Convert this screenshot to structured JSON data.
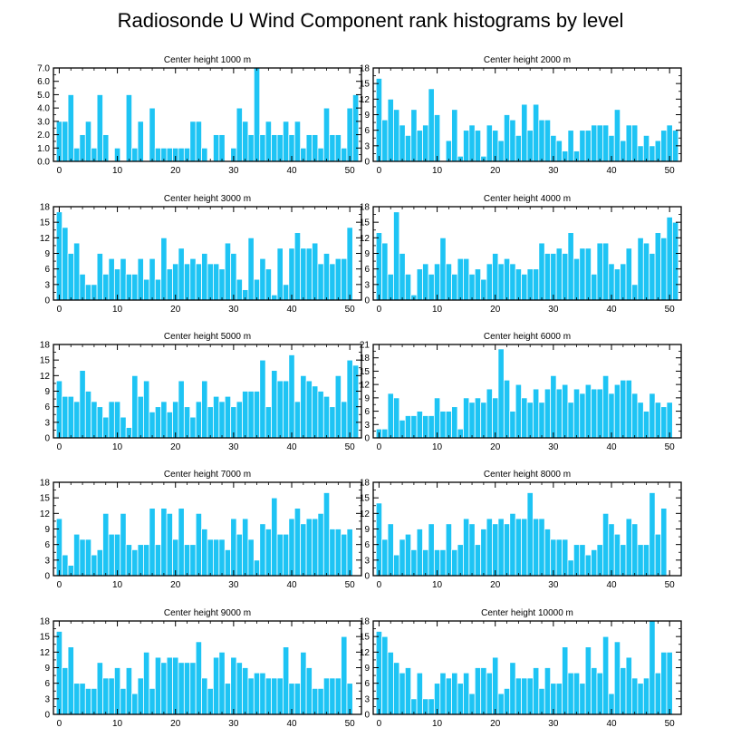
{
  "title": "Radiosonde U Wind Component rank histograms by level",
  "colors": {
    "bar": "#1ec4f4",
    "bar_edge": "#ffffff",
    "axis": "#000000"
  },
  "chart_data": [
    {
      "type": "bar",
      "title": "Center height 1000 m",
      "x_start": 0,
      "xlim": [
        -1,
        52
      ],
      "xticks": [
        0,
        10,
        20,
        30,
        40,
        50
      ],
      "ylim": [
        0,
        7
      ],
      "yticks": [
        0,
        1,
        2,
        3,
        4,
        5,
        6,
        7
      ],
      "ytick_format": "fixed1",
      "values": [
        3,
        3,
        5,
        1,
        2,
        3,
        1,
        5,
        2,
        0,
        1,
        0,
        5,
        1,
        3,
        0,
        4,
        1,
        1,
        1,
        1,
        1,
        1,
        3,
        3,
        1,
        0,
        2,
        2,
        0,
        1,
        4,
        3,
        2,
        7,
        2,
        3,
        2,
        2,
        3,
        2,
        3,
        1,
        2,
        2,
        1,
        4,
        2,
        2,
        1,
        4,
        5
      ]
    },
    {
      "type": "bar",
      "title": "Center height 2000 m",
      "x_start": 0,
      "xlim": [
        -1,
        52
      ],
      "xticks": [
        0,
        10,
        20,
        30,
        40,
        50
      ],
      "ylim": [
        0,
        18
      ],
      "yticks": [
        0,
        3,
        6,
        9,
        12,
        15,
        18
      ],
      "ytick_format": "int",
      "values": [
        16,
        8,
        12,
        10,
        7,
        5,
        10,
        6,
        7,
        14,
        9,
        0,
        4,
        10,
        1,
        6,
        7,
        6,
        1,
        7,
        6,
        4,
        9,
        8,
        5,
        11,
        6,
        11,
        8,
        8,
        5,
        4,
        2,
        6,
        2,
        6,
        6,
        7,
        7,
        7,
        5,
        10,
        4,
        7,
        7,
        3,
        5,
        3,
        4,
        6,
        7,
        6
      ]
    },
    {
      "type": "bar",
      "title": "Center height 3000 m",
      "x_start": 0,
      "xlim": [
        -1,
        52
      ],
      "xticks": [
        0,
        10,
        20,
        30,
        40,
        50
      ],
      "ylim": [
        0,
        18
      ],
      "yticks": [
        0,
        3,
        6,
        9,
        12,
        15,
        18
      ],
      "ytick_format": "int",
      "values": [
        17,
        14,
        9,
        11,
        5,
        3,
        3,
        9,
        5,
        8,
        6,
        8,
        5,
        5,
        8,
        4,
        8,
        4,
        12,
        6,
        7,
        10,
        7,
        8,
        7,
        9,
        7,
        7,
        6,
        11,
        9,
        4,
        2,
        12,
        4,
        8,
        6,
        1,
        10,
        3,
        10,
        13,
        10,
        10,
        11,
        7,
        9,
        7,
        8,
        8,
        14,
        0
      ]
    },
    {
      "type": "bar",
      "title": "Center height 4000 m",
      "x_start": 0,
      "xlim": [
        -1,
        52
      ],
      "xticks": [
        0,
        10,
        20,
        30,
        40,
        50
      ],
      "ylim": [
        0,
        18
      ],
      "yticks": [
        0,
        3,
        6,
        9,
        12,
        15,
        18
      ],
      "ytick_format": "int",
      "values": [
        13,
        11,
        5,
        17,
        9,
        5,
        1,
        6,
        7,
        5,
        7,
        12,
        7,
        5,
        8,
        8,
        5,
        6,
        4,
        7,
        9,
        7,
        8,
        7,
        6,
        5,
        6,
        6,
        11,
        9,
        9,
        10,
        9,
        13,
        8,
        10,
        10,
        5,
        11,
        11,
        7,
        6,
        7,
        10,
        3,
        12,
        11,
        9,
        13,
        12,
        16,
        15
      ]
    },
    {
      "type": "bar",
      "title": "Center height 5000 m",
      "x_start": 0,
      "xlim": [
        -1,
        52
      ],
      "xticks": [
        0,
        10,
        20,
        30,
        40,
        50
      ],
      "ylim": [
        0,
        18
      ],
      "yticks": [
        0,
        3,
        6,
        9,
        12,
        15,
        18
      ],
      "ytick_format": "int",
      "values": [
        11,
        8,
        8,
        7,
        13,
        9,
        7,
        6,
        4,
        7,
        7,
        4,
        2,
        12,
        8,
        11,
        5,
        6,
        7,
        5,
        7,
        11,
        6,
        4,
        7,
        11,
        6,
        8,
        7,
        8,
        6,
        7,
        9,
        9,
        9,
        15,
        6,
        13,
        11,
        11,
        16,
        7,
        12,
        11,
        10,
        9,
        8,
        6,
        12,
        7,
        15,
        14
      ]
    },
    {
      "type": "bar",
      "title": "Center height 6000 m",
      "x_start": 0,
      "xlim": [
        -1,
        52
      ],
      "xticks": [
        0,
        10,
        20,
        30,
        40,
        50
      ],
      "ylim": [
        0,
        21
      ],
      "yticks": [
        0,
        3,
        6,
        9,
        12,
        15,
        18,
        21
      ],
      "ytick_format": "int",
      "values": [
        2,
        2,
        10,
        9,
        4,
        5,
        5,
        6,
        5,
        5,
        9,
        6,
        6,
        7,
        2,
        9,
        8,
        9,
        8,
        11,
        9,
        20,
        13,
        6,
        12,
        9,
        8,
        11,
        8,
        11,
        14,
        11,
        12,
        8,
        11,
        10,
        12,
        11,
        11,
        14,
        10,
        12,
        13,
        13,
        10,
        8,
        6,
        10,
        8,
        7,
        8,
        0
      ]
    },
    {
      "type": "bar",
      "title": "Center height 7000 m",
      "x_start": 0,
      "xlim": [
        -1,
        52
      ],
      "xticks": [
        0,
        10,
        20,
        30,
        40,
        50
      ],
      "ylim": [
        0,
        18
      ],
      "yticks": [
        0,
        3,
        6,
        9,
        12,
        15,
        18
      ],
      "ytick_format": "int",
      "values": [
        11,
        4,
        2,
        8,
        7,
        7,
        4,
        5,
        12,
        8,
        8,
        12,
        6,
        5,
        6,
        6,
        13,
        6,
        13,
        12,
        7,
        13,
        6,
        6,
        12,
        9,
        7,
        7,
        7,
        5,
        11,
        8,
        11,
        7,
        3,
        10,
        9,
        15,
        8,
        8,
        11,
        13,
        10,
        11,
        11,
        12,
        16,
        9,
        9,
        8,
        9,
        0
      ]
    },
    {
      "type": "bar",
      "title": "Center height 8000 m",
      "x_start": 0,
      "xlim": [
        -1,
        52
      ],
      "xticks": [
        0,
        10,
        20,
        30,
        40,
        50
      ],
      "ylim": [
        0,
        18
      ],
      "yticks": [
        0,
        3,
        6,
        9,
        12,
        15,
        18
      ],
      "ytick_format": "int",
      "values": [
        14,
        7,
        10,
        4,
        7,
        8,
        5,
        9,
        5,
        10,
        5,
        5,
        10,
        5,
        6,
        11,
        10,
        6,
        9,
        11,
        10,
        11,
        10,
        12,
        11,
        11,
        16,
        11,
        11,
        9,
        7,
        7,
        7,
        3,
        6,
        6,
        4,
        5,
        6,
        12,
        10,
        8,
        6,
        11,
        10,
        6,
        6,
        16,
        8,
        13,
        0,
        0
      ]
    },
    {
      "type": "bar",
      "title": "Center height 9000 m",
      "x_start": 0,
      "xlim": [
        -1,
        52
      ],
      "xticks": [
        0,
        10,
        20,
        30,
        40,
        50
      ],
      "ylim": [
        0,
        18
      ],
      "yticks": [
        0,
        3,
        6,
        9,
        12,
        15,
        18
      ],
      "ytick_format": "int",
      "values": [
        16,
        9,
        13,
        6,
        6,
        5,
        5,
        10,
        7,
        7,
        9,
        5,
        9,
        4,
        7,
        12,
        5,
        11,
        10,
        11,
        11,
        10,
        10,
        10,
        14,
        7,
        5,
        11,
        12,
        6,
        11,
        10,
        9,
        7,
        8,
        8,
        7,
        7,
        7,
        13,
        6,
        6,
        12,
        9,
        5,
        5,
        7,
        7,
        7,
        15,
        6,
        0
      ]
    },
    {
      "type": "bar",
      "title": "Center height 10000 m",
      "x_start": 0,
      "xlim": [
        -1,
        52
      ],
      "xticks": [
        0,
        10,
        20,
        30,
        40,
        50
      ],
      "ylim": [
        0,
        18
      ],
      "yticks": [
        0,
        3,
        6,
        9,
        12,
        15,
        18
      ],
      "ytick_format": "int",
      "values": [
        16,
        15,
        12,
        10,
        8,
        9,
        3,
        8,
        3,
        3,
        6,
        8,
        7,
        8,
        6,
        8,
        4,
        9,
        9,
        8,
        11,
        4,
        5,
        10,
        7,
        7,
        7,
        9,
        5,
        9,
        6,
        6,
        13,
        8,
        8,
        6,
        13,
        9,
        8,
        15,
        4,
        14,
        9,
        11,
        7,
        6,
        7,
        18,
        8,
        12,
        12,
        0
      ]
    }
  ]
}
